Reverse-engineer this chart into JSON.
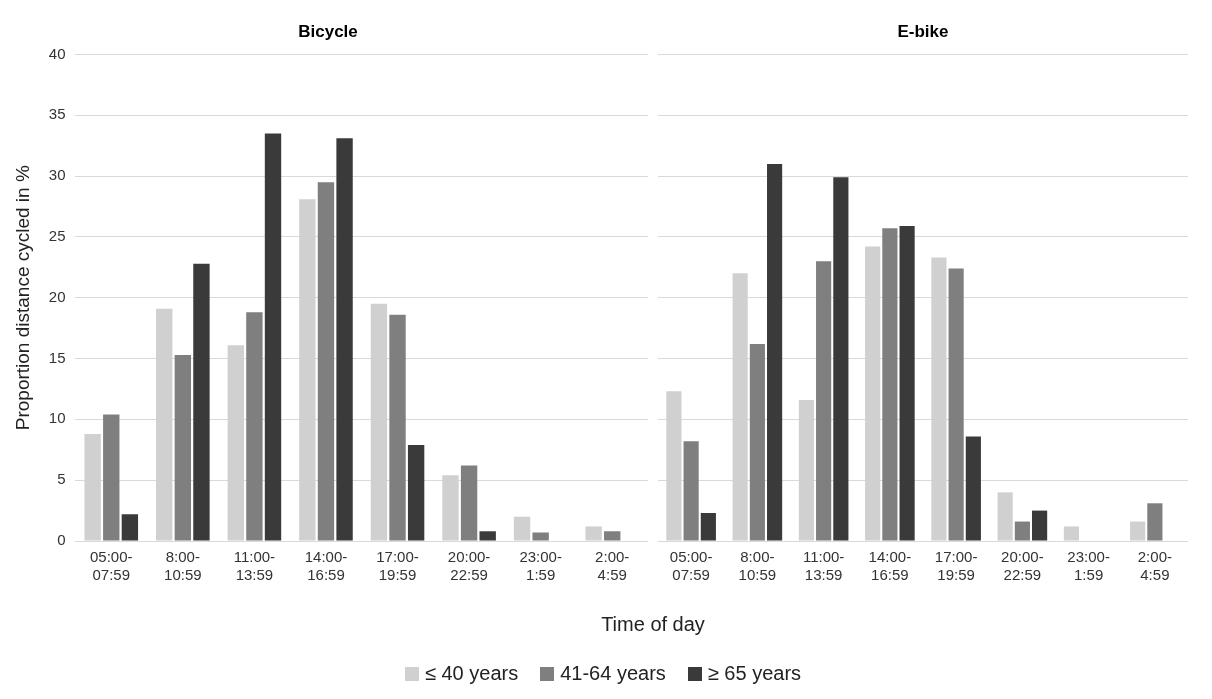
{
  "chart_data": [
    {
      "type": "bar",
      "title": "Bicycle",
      "ylabel": "Proportion distance cycled in %",
      "xlabel": "Time of day",
      "categories": [
        "05:00-07:59",
        "8:00-10:59",
        "11:00-13:59",
        "14:00-16:59",
        "17:00-19:59",
        "20:00-22:59",
        "23:00-1:59",
        "2:00-4:59"
      ],
      "series": [
        {
          "name": "≤ 40 years",
          "color": "#d0d0d0",
          "values": [
            8.8,
            19.1,
            16.1,
            28.1,
            19.5,
            5.4,
            2.0,
            1.2
          ]
        },
        {
          "name": "41-64 years",
          "color": "#7f7f7f",
          "values": [
            10.4,
            15.3,
            18.8,
            29.5,
            18.6,
            6.2,
            0.7,
            0.8
          ]
        },
        {
          "name": "≥ 65 years",
          "color": "#3a3a3a",
          "values": [
            2.2,
            22.8,
            33.5,
            33.1,
            7.9,
            0.8,
            0,
            0
          ]
        }
      ],
      "ylim": [
        0,
        40
      ],
      "yticks": [
        0,
        5,
        10,
        15,
        20,
        25,
        30,
        35,
        40
      ],
      "grid": "y",
      "legend": "bottom"
    },
    {
      "type": "bar",
      "title": "E-bike",
      "categories": [
        "05:00-07:59",
        "8:00-10:59",
        "11:00-13:59",
        "14:00-16:59",
        "17:00-19:59",
        "20:00-22:59",
        "23:00-1:59",
        "2:00-4:59"
      ],
      "series": [
        {
          "color": "#d0d0d0",
          "values": [
            12.3,
            22.0,
            11.6,
            24.2,
            23.3,
            4.0,
            1.2,
            1.6
          ]
        },
        {
          "color": "#7f7f7f",
          "values": [
            8.2,
            16.2,
            23.0,
            25.7,
            22.4,
            1.6,
            0,
            3.1
          ]
        },
        {
          "color": "#3a3a3a",
          "values": [
            2.3,
            31.0,
            29.9,
            25.9,
            8.6,
            2.5,
            0,
            0
          ]
        }
      ],
      "ylim": [
        0,
        40
      ],
      "yticks": [
        0,
        5,
        10,
        15,
        20,
        25,
        30,
        35,
        40
      ],
      "grid": "y",
      "tick_labels": "x"
    }
  ]
}
